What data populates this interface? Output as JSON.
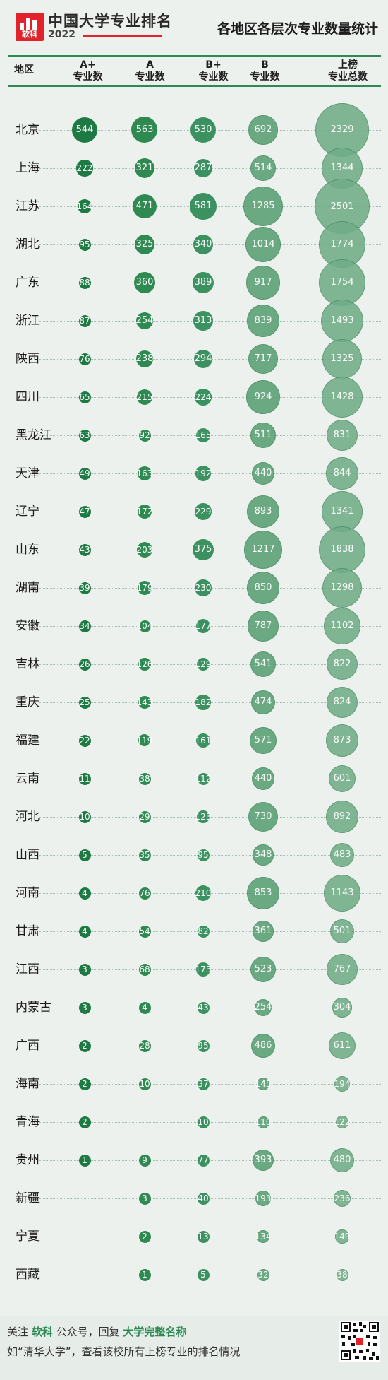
{
  "brand": {
    "logo_text": "软科",
    "title": "中国大学专业排名",
    "year": "2022"
  },
  "main_title": "各地区各层次专业数量统计",
  "headers": {
    "region": "地区",
    "columns": [
      {
        "line1": "A+",
        "line2": "专业数"
      },
      {
        "line1": "A",
        "line2": "专业数"
      },
      {
        "line1": "B+",
        "line2": "专业数"
      },
      {
        "line1": "B",
        "line2": "专业数"
      },
      {
        "line1": "上榜",
        "line2": "专业总数"
      }
    ]
  },
  "chart_data": {
    "type": "table",
    "columns": [
      "A+专业数",
      "A专业数",
      "B+专业数",
      "B专业数",
      "上榜专业总数"
    ],
    "rows": [
      {
        "region": "北京",
        "values": [
          544,
          563,
          530,
          692,
          2329
        ]
      },
      {
        "region": "上海",
        "values": [
          222,
          321,
          287,
          514,
          1344
        ]
      },
      {
        "region": "江苏",
        "values": [
          164,
          471,
          581,
          1285,
          2501
        ]
      },
      {
        "region": "湖北",
        "values": [
          95,
          325,
          340,
          1014,
          1774
        ]
      },
      {
        "region": "广东",
        "values": [
          88,
          360,
          389,
          917,
          1754
        ]
      },
      {
        "region": "浙江",
        "values": [
          87,
          254,
          313,
          839,
          1493
        ]
      },
      {
        "region": "陕西",
        "values": [
          76,
          238,
          294,
          717,
          1325
        ]
      },
      {
        "region": "四川",
        "values": [
          65,
          215,
          224,
          924,
          1428
        ]
      },
      {
        "region": "黑龙江",
        "values": [
          63,
          92,
          165,
          511,
          831
        ]
      },
      {
        "region": "天津",
        "values": [
          49,
          163,
          192,
          440,
          844
        ]
      },
      {
        "region": "辽宁",
        "values": [
          47,
          172,
          229,
          893,
          1341
        ]
      },
      {
        "region": "山东",
        "values": [
          43,
          203,
          375,
          1217,
          1838
        ]
      },
      {
        "region": "湖南",
        "values": [
          39,
          179,
          230,
          850,
          1298
        ]
      },
      {
        "region": "安徽",
        "values": [
          34,
          104,
          177,
          787,
          1102
        ]
      },
      {
        "region": "吉林",
        "values": [
          26,
          126,
          129,
          541,
          822
        ]
      },
      {
        "region": "重庆",
        "values": [
          25,
          143,
          182,
          474,
          824
        ]
      },
      {
        "region": "福建",
        "values": [
          22,
          119,
          161,
          571,
          873
        ]
      },
      {
        "region": "云南",
        "values": [
          11,
          38,
          112,
          440,
          601
        ]
      },
      {
        "region": "河北",
        "values": [
          10,
          29,
          123,
          730,
          892
        ]
      },
      {
        "region": "山西",
        "values": [
          5,
          35,
          95,
          348,
          483
        ]
      },
      {
        "region": "河南",
        "values": [
          4,
          76,
          210,
          853,
          1143
        ]
      },
      {
        "region": "甘肃",
        "values": [
          4,
          54,
          82,
          361,
          501
        ]
      },
      {
        "region": "江西",
        "values": [
          3,
          68,
          173,
          523,
          767
        ]
      },
      {
        "region": "内蒙古",
        "values": [
          3,
          4,
          43,
          254,
          304
        ]
      },
      {
        "region": "广西",
        "values": [
          2,
          28,
          95,
          486,
          611
        ]
      },
      {
        "region": "海南",
        "values": [
          2,
          10,
          37,
          145,
          194
        ]
      },
      {
        "region": "青海",
        "values": [
          2,
          null,
          10,
          110,
          122
        ]
      },
      {
        "region": "贵州",
        "values": [
          1,
          9,
          77,
          393,
          480
        ]
      },
      {
        "region": "新疆",
        "values": [
          null,
          3,
          40,
          193,
          236
        ]
      },
      {
        "region": "宁夏",
        "values": [
          null,
          2,
          13,
          134,
          149
        ]
      },
      {
        "region": "西藏",
        "values": [
          null,
          1,
          5,
          32,
          38
        ]
      }
    ]
  },
  "colors": {
    "c0": "#1e7a43",
    "c1": "#2f8a52",
    "c2": "#3b9260",
    "c3": "#58a074",
    "c4": "#70ad87"
  },
  "footer": {
    "line1_a": "关注 ",
    "line1_b": "软科",
    "line1_c": " 公众号，回复 ",
    "line1_d": "大学完整名称",
    "line2": "如“清华大学”，查看该校所有上榜专业的排名情况"
  }
}
